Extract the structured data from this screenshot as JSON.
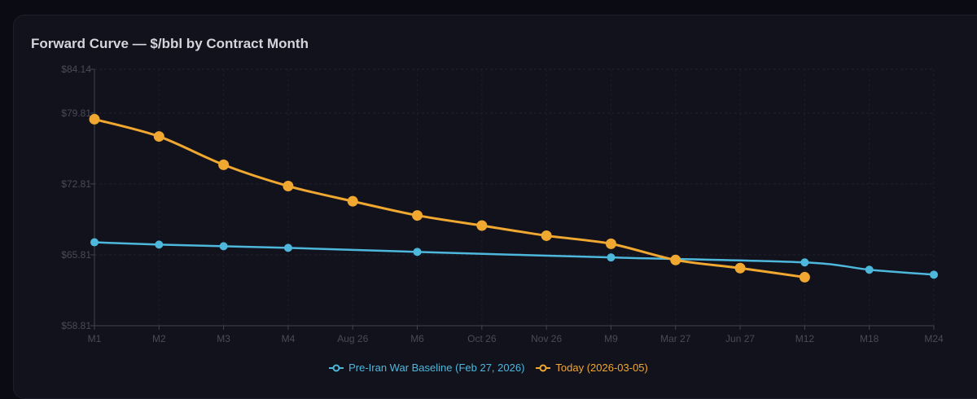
{
  "chart_data": {
    "type": "line",
    "title": "Forward Curve — $/bbl by Contract Month",
    "categories": [
      "M1",
      "M2",
      "M3",
      "M4",
      "Aug 26",
      "M6",
      "Oct 26",
      "Nov 26",
      "M9",
      "Mar 27",
      "Jun 27",
      "M12",
      "M18",
      "M24"
    ],
    "yticks": [
      "$58.81",
      "$65.81",
      "$72.81",
      "$79.81",
      "$84.14"
    ],
    "ytick_values": [
      58.81,
      65.81,
      72.81,
      79.81,
      84.14
    ],
    "ylim": [
      58.81,
      84.14
    ],
    "grid": true,
    "legend_position": "bottom",
    "series": [
      {
        "name": "Pre-Iran War Baseline (Feb 27, 2026)",
        "color": "#4db8dc",
        "values": [
          67.05,
          66.82,
          66.66,
          66.5,
          null,
          66.1,
          null,
          null,
          65.55,
          null,
          null,
          65.06,
          64.34,
          63.85
        ]
      },
      {
        "name": "Today (2026-03-05)",
        "color": "#f0a830",
        "values": [
          79.2,
          77.5,
          74.7,
          72.6,
          71.1,
          69.7,
          68.7,
          67.7,
          66.9,
          65.3,
          64.5,
          63.6,
          null,
          null
        ]
      }
    ]
  }
}
